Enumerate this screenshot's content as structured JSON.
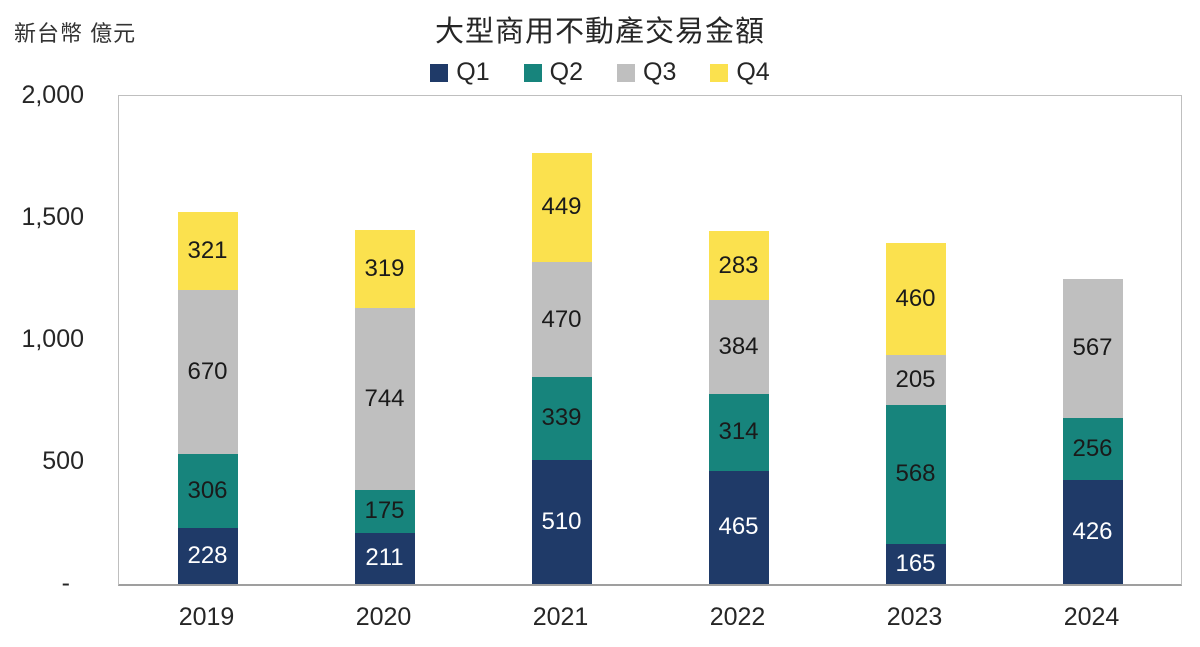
{
  "chart": {
    "unit_label": "新台幣 億元"
  },
  "chart_data": {
    "type": "bar",
    "stacked": true,
    "title": "大型商用不動產交易金額",
    "xlabel": "",
    "ylabel": "新台幣 億元",
    "categories": [
      "2019",
      "2020",
      "2021",
      "2022",
      "2023",
      "2024"
    ],
    "series": [
      {
        "name": "Q1",
        "color": "#1f3a68",
        "label_color": "#ffffff",
        "values": [
          228,
          211,
          510,
          465,
          165,
          426
        ]
      },
      {
        "name": "Q2",
        "color": "#17847c",
        "label_color": "#1a1a1a",
        "values": [
          306,
          175,
          339,
          314,
          568,
          256
        ]
      },
      {
        "name": "Q3",
        "color": "#bfbfbf",
        "label_color": "#1a1a1a",
        "values": [
          670,
          744,
          470,
          384,
          205,
          567
        ]
      },
      {
        "name": "Q4",
        "color": "#fbe14e",
        "label_color": "#1a1a1a",
        "values": [
          321,
          319,
          449,
          283,
          460,
          null
        ]
      }
    ],
    "ylim": [
      0,
      2000
    ],
    "yticks": [
      {
        "label": "2,000",
        "value": 2000
      },
      {
        "label": "1,500",
        "value": 1500
      },
      {
        "label": "1,000",
        "value": 1000
      },
      {
        "label": "500",
        "value": 500
      },
      {
        "label": "-",
        "value": 0
      }
    ],
    "legend_position": "top",
    "grid": false,
    "totals": [
      1525,
      1449,
      1768,
      1446,
      1398,
      1249
    ]
  }
}
